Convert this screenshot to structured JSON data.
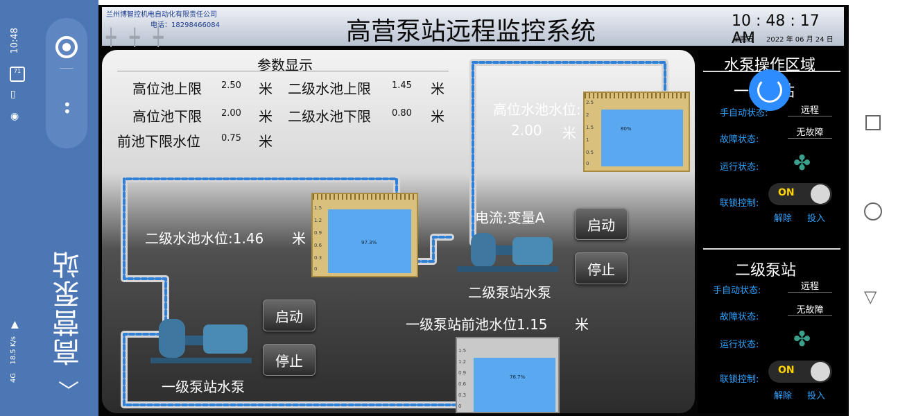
{
  "status_bar": {
    "time": "10:48",
    "battery": "71",
    "network": "18.5 K/s",
    "signal": "4G"
  },
  "sidebar": {
    "app_title": "高营泵站"
  },
  "header": {
    "company": "兰州博智控机电自动化有限责任公司",
    "phone": "电话：18298466084",
    "title": "高营泵站远程监控系统",
    "clock": "10 : 48 : 17  AM",
    "weekday": "星期五",
    "date": "2022 年 06 月 24 日"
  },
  "params": {
    "heading": "参数显示",
    "high_pool_upper_label": "高位池上限",
    "high_pool_upper_value": "2.50",
    "high_pool_lower_label": "高位池下限",
    "high_pool_lower_value": "2.00",
    "front_pool_lower_label": "前池下限水位",
    "front_pool_lower_value": "0.75",
    "second_pool_upper_label": "二级水池上限",
    "second_pool_upper_value": "1.45",
    "second_pool_lower_label": "二级水池下限",
    "second_pool_lower_value": "0.80",
    "unit": "米"
  },
  "scene": {
    "high_tank_label": "高位水池水位:",
    "high_tank_level": "2.00",
    "high_tank_pct": "80%",
    "high_tank_fill": 0.8,
    "second_tank_label": "二级水池水位:1.46",
    "second_tank_pct": "97.3%",
    "second_tank_fill": 0.973,
    "front_tank_label": "一级泵站前池水位1.15",
    "front_tank_pct": "76.7%",
    "front_tank_fill": 0.767,
    "current_label": "电流:变量A",
    "pump2_label": "二级泵站水泵",
    "pump1_label": "一级泵站水泵",
    "start_label": "启动",
    "stop_label": "停止",
    "unit": "米",
    "gauge_high": [
      "2.5",
      "2",
      "1.5",
      "1",
      "0.5",
      "0"
    ],
    "gauge_small": [
      "1.5",
      "1.2",
      "0.9",
      "0.6",
      "0.3",
      "0"
    ]
  },
  "ops": {
    "title": "水泵操作区域",
    "station1": "一级泵站",
    "station2": "二级泵站",
    "mode_label": "手自动状态:",
    "mode_value": "远程",
    "fault_label": "故障状态:",
    "fault_value": "无故障",
    "run_label": "运行状态:",
    "interlock_label": "联锁控制:",
    "toggle_on": "ON",
    "release": "解除",
    "engage": "投入"
  }
}
